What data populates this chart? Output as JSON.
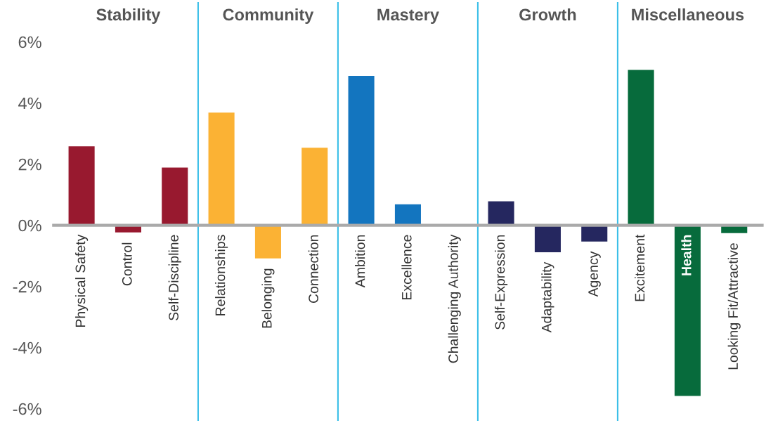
{
  "chart_data": {
    "type": "bar",
    "categories": [
      "Physical Safety",
      "Control",
      "Self-Discipline",
      "Relationships",
      "Belonging",
      "Connection",
      "Ambition",
      "Excellence",
      "Challenging Authority",
      "Self-Expression",
      "Adaptability",
      "Agency",
      "Excitement",
      "Health",
      "Looking Fit/Attractive"
    ],
    "values": [
      2.6,
      -0.25,
      1.9,
      3.7,
      -1.1,
      2.55,
      4.9,
      0.7,
      null,
      0.8,
      -0.9,
      -0.55,
      5.1,
      -5.6,
      -0.27
    ],
    "colors": [
      "#98192f",
      "#98192f",
      "#98192f",
      "#fbb234",
      "#fbb234",
      "#fbb234",
      "#1375bf",
      "#1375bf",
      "#1375bf",
      "#25275f",
      "#25275f",
      "#25275f",
      "#076b3c",
      "#076b3c",
      "#076b3c"
    ],
    "annotations": [
      "Stability",
      "Community",
      "Mastery",
      "Growth",
      "Miscellaneous"
    ],
    "ylim": [
      -6.4,
      7.3
    ],
    "yticks": [
      {
        "value": -6,
        "label": "-6%"
      },
      {
        "value": -4,
        "label": "-4%"
      },
      {
        "value": -2,
        "label": "-2%"
      },
      {
        "value": 0,
        "label": "0%"
      },
      {
        "value": 2,
        "label": "2%"
      },
      {
        "value": 4,
        "label": "4%"
      },
      {
        "value": 6,
        "label": "6%"
      }
    ],
    "grid": false,
    "legend": false
  }
}
